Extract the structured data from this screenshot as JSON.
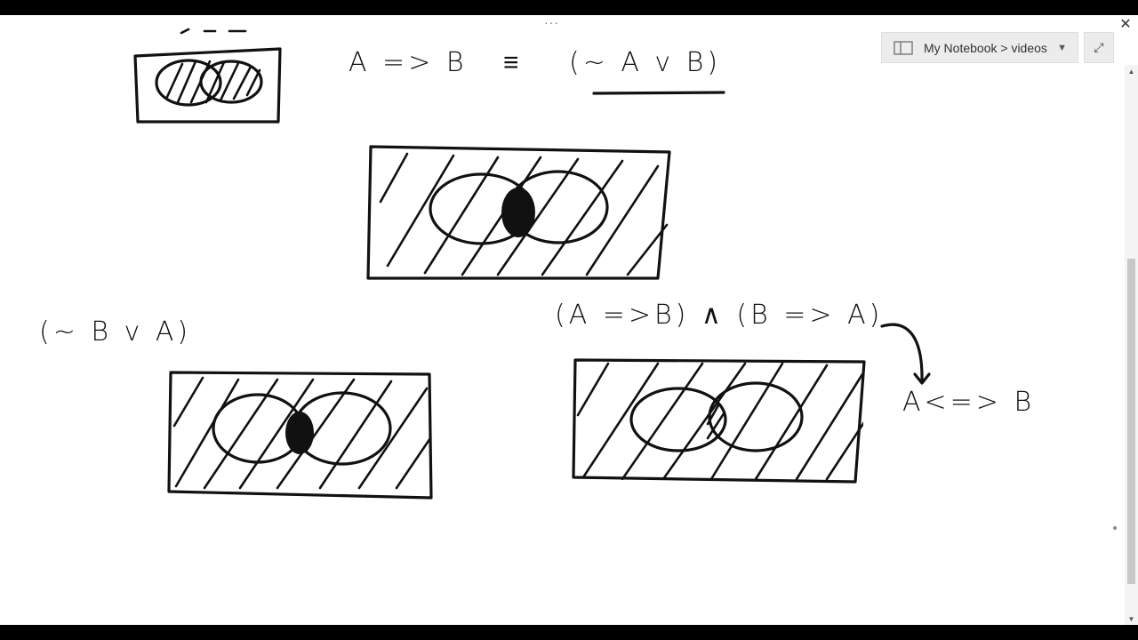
{
  "notebook": {
    "breadcrumb": "My Notebook > videos",
    "icon": "notebook-icon",
    "dropdown_icon": "caret-down-icon"
  },
  "window": {
    "close_glyph": "✕",
    "expand_glyph": "⤢",
    "more_glyph": "···"
  },
  "scrollbar": {
    "up_glyph": "▲",
    "down_glyph": "▼"
  },
  "handwriting": {
    "implication_lhs": "A => B",
    "equivalence_sign": "≡",
    "implication_rhs": "(~ A v B)",
    "converse_expr": "(~ B v A)",
    "biconditional_expr": "(A =>B) ∧ (B => A)",
    "iff_result": "A<=> B"
  }
}
